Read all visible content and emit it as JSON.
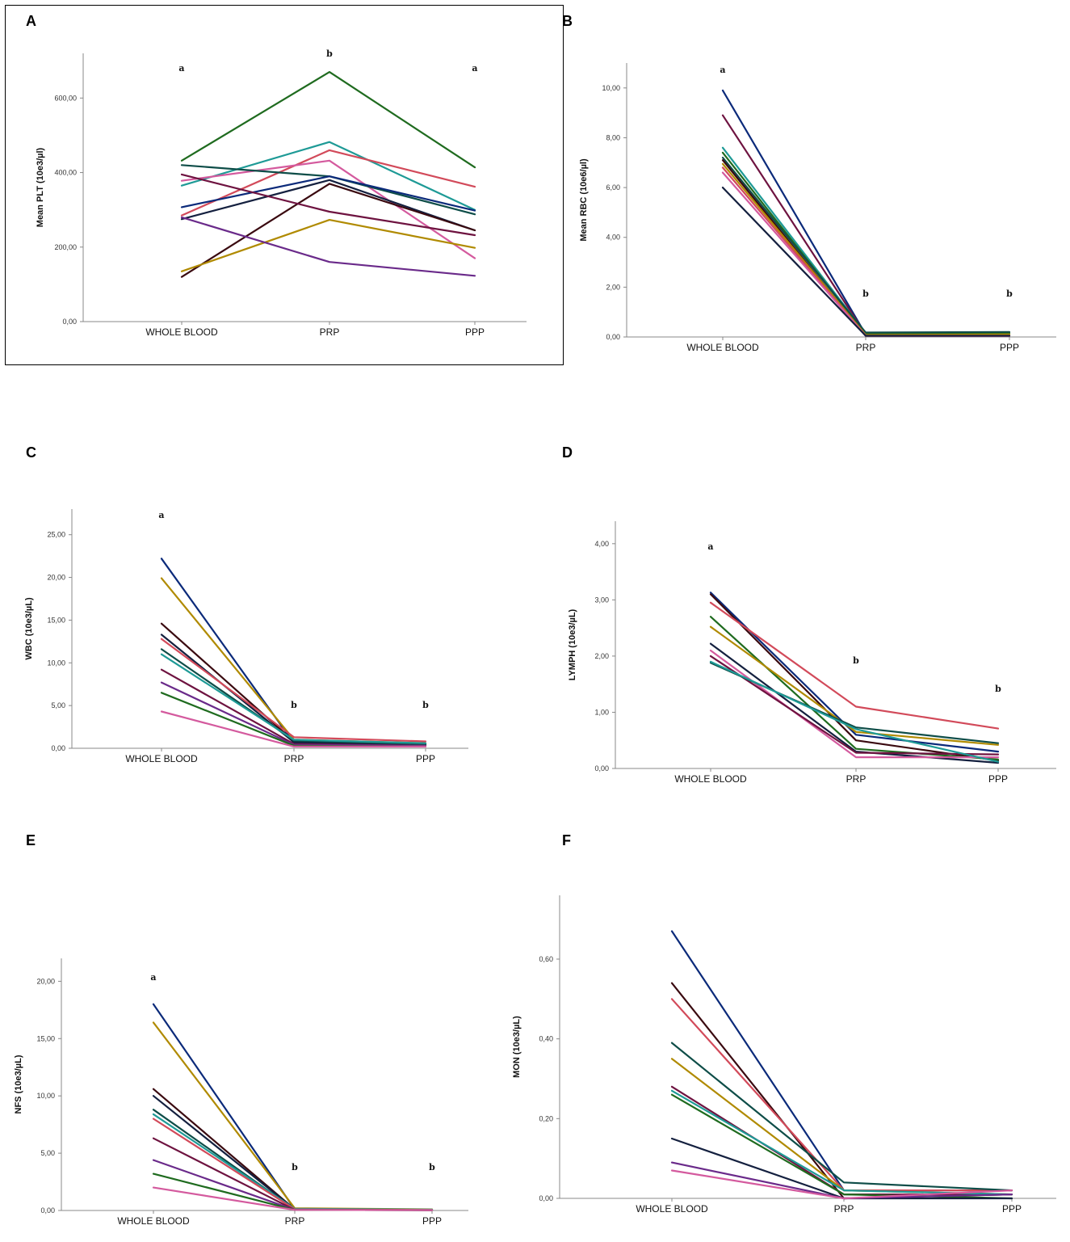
{
  "categories": [
    "WHOLE BLOOD",
    "PRP",
    "PPP"
  ],
  "series_colors": {
    "navy": "#0b2a7a",
    "green": "#1f6b1f",
    "teal": "#1e9a96",
    "red": "#d24a5a",
    "pink": "#d45a9e",
    "maroon": "#6e1340",
    "brownblack": "#3a0a10",
    "darknavy": "#14203f",
    "olive": "#b08a00",
    "purple": "#6a2a8a",
    "darkteal": "#0e4d48"
  },
  "chart_data": [
    {
      "panel": "A",
      "type": "line",
      "title": "",
      "xlabel": "",
      "ylabel": "Mean PLT (10e3/µl)",
      "categories": [
        "WHOLE BLOOD",
        "PRP",
        "PPP"
      ],
      "ylim": [
        0,
        720
      ],
      "yticks": [
        0,
        200,
        400,
        600
      ],
      "ytick_labels": [
        "0,00",
        "200,00",
        "400,00",
        "600,00"
      ],
      "significance": [
        "a",
        "b",
        "a"
      ],
      "series": [
        {
          "color": "green",
          "values": [
            432,
            670,
            414
          ]
        },
        {
          "color": "teal",
          "values": [
            365,
            482,
            300
          ]
        },
        {
          "color": "red",
          "values": [
            285,
            460,
            362
          ]
        },
        {
          "color": "pink",
          "values": [
            378,
            432,
            170
          ]
        },
        {
          "color": "darkteal",
          "values": [
            420,
            390,
            288
          ]
        },
        {
          "color": "navy",
          "values": [
            307,
            390,
            298
          ]
        },
        {
          "color": "darknavy",
          "values": [
            275,
            380,
            245
          ]
        },
        {
          "color": "brownblack",
          "values": [
            120,
            370,
            245
          ]
        },
        {
          "color": "maroon",
          "values": [
            395,
            295,
            232
          ]
        },
        {
          "color": "olive",
          "values": [
            135,
            273,
            198
          ]
        },
        {
          "color": "purple",
          "values": [
            280,
            160,
            123
          ]
        }
      ]
    },
    {
      "panel": "B",
      "type": "line",
      "title": "",
      "xlabel": "",
      "ylabel": "Mean RBC (10e6/µl)",
      "categories": [
        "WHOLE BLOOD",
        "PRP",
        "PPP"
      ],
      "ylim": [
        0,
        11
      ],
      "yticks": [
        0,
        2,
        4,
        6,
        8,
        10
      ],
      "ytick_labels": [
        "0,00",
        "2,00",
        "4,00",
        "6,00",
        "8,00",
        "10,00"
      ],
      "significance": [
        "a",
        "b",
        "b"
      ],
      "series": [
        {
          "color": "navy",
          "values": [
            9.9,
            0.1,
            0.08
          ]
        },
        {
          "color": "maroon",
          "values": [
            8.9,
            0.1,
            0.06
          ]
        },
        {
          "color": "teal",
          "values": [
            7.6,
            0.15,
            0.18
          ]
        },
        {
          "color": "green",
          "values": [
            7.4,
            0.12,
            0.15
          ]
        },
        {
          "color": "darkteal",
          "values": [
            7.2,
            0.18,
            0.2
          ]
        },
        {
          "color": "brownblack",
          "values": [
            7.1,
            0.05,
            0.05
          ]
        },
        {
          "color": "olive",
          "values": [
            6.95,
            0.08,
            0.1
          ]
        },
        {
          "color": "red",
          "values": [
            6.8,
            0.05,
            0.05
          ]
        },
        {
          "color": "pink",
          "values": [
            6.6,
            0.05,
            0.04
          ]
        },
        {
          "color": "darknavy",
          "values": [
            6.0,
            0.05,
            0.05
          ]
        }
      ]
    },
    {
      "panel": "C",
      "type": "line",
      "title": "",
      "xlabel": "",
      "ylabel": "WBC (10e3/µL)",
      "categories": [
        "WHOLE BLOOD",
        "PRP",
        "PPP"
      ],
      "ylim": [
        0,
        28
      ],
      "yticks": [
        0,
        5,
        10,
        15,
        20,
        25
      ],
      "ytick_labels": [
        "0,00",
        "5,00",
        "10,00",
        "15,00",
        "20,00",
        "25,00"
      ],
      "significance": [
        "a",
        "b",
        "b"
      ],
      "series": [
        {
          "color": "navy",
          "values": [
            22.2,
            0.6,
            0.4
          ]
        },
        {
          "color": "olive",
          "values": [
            19.9,
            1.0,
            0.6
          ]
        },
        {
          "color": "brownblack",
          "values": [
            14.6,
            0.8,
            0.5
          ]
        },
        {
          "color": "darknavy",
          "values": [
            13.3,
            0.7,
            0.4
          ]
        },
        {
          "color": "red",
          "values": [
            12.8,
            1.3,
            0.8
          ]
        },
        {
          "color": "darkteal",
          "values": [
            11.6,
            0.9,
            0.5
          ]
        },
        {
          "color": "teal",
          "values": [
            11.0,
            1.0,
            0.6
          ]
        },
        {
          "color": "maroon",
          "values": [
            9.2,
            0.5,
            0.3
          ]
        },
        {
          "color": "purple",
          "values": [
            7.7,
            0.4,
            0.3
          ]
        },
        {
          "color": "green",
          "values": [
            6.5,
            0.3,
            0.2
          ]
        },
        {
          "color": "pink",
          "values": [
            4.3,
            0.2,
            0.2
          ]
        }
      ]
    },
    {
      "panel": "D",
      "type": "line",
      "title": "",
      "xlabel": "",
      "ylabel": "LYMPH (10e3/µL)",
      "categories": [
        "WHOLE BLOOD",
        "PRP",
        "PPP"
      ],
      "ylim": [
        0,
        4.4
      ],
      "yticks": [
        0,
        1,
        2,
        3,
        4
      ],
      "ytick_labels": [
        "0,00",
        "1,00",
        "2,00",
        "3,00",
        "4,00"
      ],
      "significance": [
        "a",
        "b",
        "b"
      ],
      "series": [
        {
          "color": "navy",
          "values": [
            3.13,
            0.6,
            0.3
          ]
        },
        {
          "color": "brownblack",
          "values": [
            3.1,
            0.5,
            0.14
          ]
        },
        {
          "color": "red",
          "values": [
            2.95,
            1.1,
            0.71
          ]
        },
        {
          "color": "green",
          "values": [
            2.7,
            0.35,
            0.16
          ]
        },
        {
          "color": "olive",
          "values": [
            2.52,
            0.65,
            0.42
          ]
        },
        {
          "color": "darknavy",
          "values": [
            2.22,
            0.3,
            0.1
          ]
        },
        {
          "color": "pink",
          "values": [
            2.1,
            0.2,
            0.2
          ]
        },
        {
          "color": "maroon",
          "values": [
            2.0,
            0.28,
            0.25
          ]
        },
        {
          "color": "darkteal",
          "values": [
            1.88,
            0.73,
            0.45
          ]
        },
        {
          "color": "teal",
          "values": [
            1.9,
            0.7,
            0.12
          ]
        }
      ]
    },
    {
      "panel": "E",
      "type": "line",
      "title": "",
      "xlabel": "",
      "ylabel": "NFS (10e3/µL)",
      "categories": [
        "WHOLE BLOOD",
        "PRP",
        "PPP"
      ],
      "ylim": [
        0,
        22
      ],
      "yticks": [
        0,
        5,
        10,
        15,
        20
      ],
      "ytick_labels": [
        "0,00",
        "5,00",
        "10,00",
        "15,00",
        "20,00"
      ],
      "significance": [
        "a",
        "b",
        "b"
      ],
      "series": [
        {
          "color": "navy",
          "values": [
            18.0,
            0.1,
            0.05
          ]
        },
        {
          "color": "olive",
          "values": [
            16.4,
            0.2,
            0.1
          ]
        },
        {
          "color": "brownblack",
          "values": [
            10.6,
            0.1,
            0.05
          ]
        },
        {
          "color": "darknavy",
          "values": [
            10.0,
            0.1,
            0.05
          ]
        },
        {
          "color": "darkteal",
          "values": [
            8.8,
            0.1,
            0.05
          ]
        },
        {
          "color": "teal",
          "values": [
            8.4,
            0.15,
            0.08
          ]
        },
        {
          "color": "red",
          "values": [
            8.0,
            0.1,
            0.05
          ]
        },
        {
          "color": "maroon",
          "values": [
            6.3,
            0.05,
            0.03
          ]
        },
        {
          "color": "purple",
          "values": [
            4.4,
            0.05,
            0.03
          ]
        },
        {
          "color": "green",
          "values": [
            3.2,
            0.05,
            0.03
          ]
        },
        {
          "color": "pink",
          "values": [
            2.0,
            0.05,
            0.03
          ]
        }
      ]
    },
    {
      "panel": "F",
      "type": "line",
      "title": "",
      "xlabel": "",
      "ylabel": "MON (10e3/µL)",
      "categories": [
        "WHOLE BLOOD",
        "PRP",
        "PPP"
      ],
      "ylim": [
        0,
        0.76
      ],
      "yticks": [
        0,
        0.2,
        0.4,
        0.6
      ],
      "ytick_labels": [
        "0,00",
        "0,20",
        "0,40",
        "0,60"
      ],
      "significance": [],
      "series": [
        {
          "color": "navy",
          "values": [
            0.67,
            0.02,
            0.02
          ]
        },
        {
          "color": "brownblack",
          "values": [
            0.54,
            0.0,
            0.01
          ]
        },
        {
          "color": "red",
          "values": [
            0.5,
            0.02,
            0.02
          ]
        },
        {
          "color": "darkteal",
          "values": [
            0.39,
            0.04,
            0.02
          ]
        },
        {
          "color": "olive",
          "values": [
            0.35,
            0.02,
            0.01
          ]
        },
        {
          "color": "maroon",
          "values": [
            0.28,
            0.01,
            0.01
          ]
        },
        {
          "color": "teal",
          "values": [
            0.27,
            0.02,
            0.01
          ]
        },
        {
          "color": "green",
          "values": [
            0.26,
            0.01,
            0.0
          ]
        },
        {
          "color": "darknavy",
          "values": [
            0.15,
            0.0,
            0.0
          ]
        },
        {
          "color": "purple",
          "values": [
            0.09,
            0.0,
            0.01
          ]
        },
        {
          "color": "pink",
          "values": [
            0.07,
            0.0,
            0.02
          ]
        }
      ]
    }
  ]
}
